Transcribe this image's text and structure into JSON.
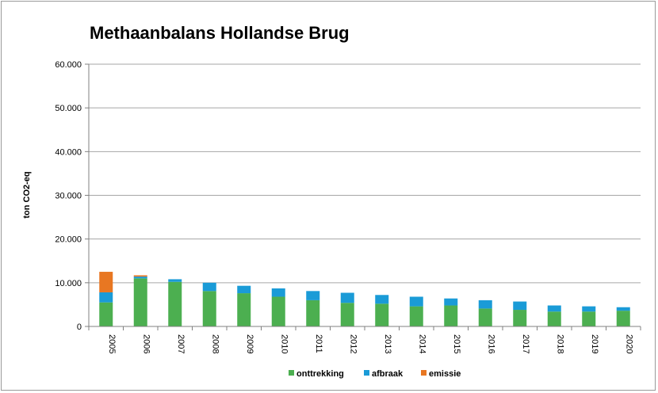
{
  "chart_data": {
    "type": "bar",
    "stacked": true,
    "title": "Methaanbalans Hollandse Brug",
    "xlabel": "",
    "ylabel": "ton CO2-eq",
    "ylim": [
      0,
      60000
    ],
    "yticks": [
      "0",
      "10.000",
      "20.000",
      "30.000",
      "40.000",
      "50.000",
      "60.000"
    ],
    "grid": true,
    "legend_position": "bottom",
    "categories": [
      "2005",
      "2006",
      "2007",
      "2008",
      "2009",
      "2010",
      "2011",
      "2012",
      "2013",
      "2014",
      "2015",
      "2016",
      "2017",
      "2018",
      "2019",
      "2020"
    ],
    "series": [
      {
        "name": "onttrekking",
        "color": "#4caf50",
        "values": [
          5500,
          11000,
          10200,
          8100,
          7600,
          6800,
          6000,
          5400,
          5200,
          4600,
          4800,
          4100,
          3800,
          3400,
          3400,
          3600
        ]
      },
      {
        "name": "afbraak",
        "color": "#1a9bd7",
        "values": [
          2300,
          400,
          600,
          1900,
          1700,
          1900,
          2100,
          2300,
          2000,
          2200,
          1600,
          1900,
          1900,
          1400,
          1200,
          800
        ]
      },
      {
        "name": "emissie",
        "color": "#e87722",
        "values": [
          4700,
          300,
          0,
          0,
          0,
          0,
          0,
          0,
          0,
          0,
          0,
          0,
          0,
          0,
          0,
          0
        ]
      }
    ]
  }
}
